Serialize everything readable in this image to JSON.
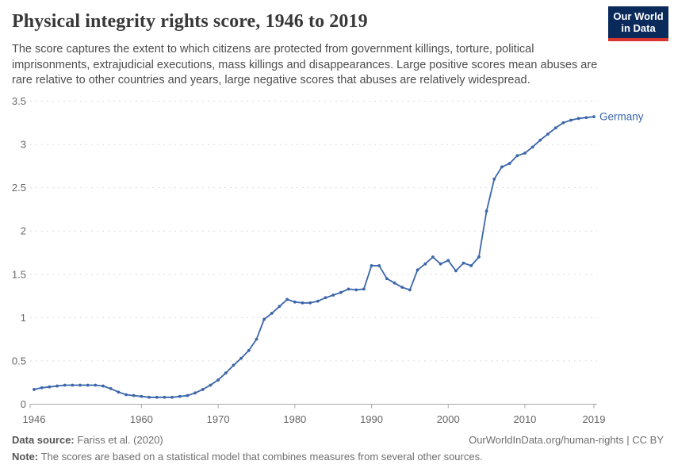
{
  "header": {
    "title": "Physical integrity rights score, 1946 to 2019",
    "subtitle": "The score captures the extent to which citizens are protected from government killings, torture, political imprisonments, extrajudicial executions, mass killings and disappearances. Large positive scores mean abuses are rare relative to other countries and years, large negative scores that abuses are relatively widespread.",
    "logo": {
      "line1": "Our World",
      "line2": "in Data"
    }
  },
  "chart_data": {
    "type": "line",
    "title": "Physical integrity rights score, 1946 to 2019",
    "xlabel": "",
    "ylabel": "",
    "xlim": [
      1946,
      2019
    ],
    "ylim": [
      0,
      3.5
    ],
    "grid": "horizontal-dashed",
    "legend_position": "end-of-line-label",
    "x_ticks": [
      1946,
      1960,
      1970,
      1980,
      1990,
      2000,
      2010,
      2019
    ],
    "y_ticks": [
      0,
      0.5,
      1,
      1.5,
      2,
      2.5,
      3,
      3.5
    ],
    "series": [
      {
        "name": "Germany",
        "color": "#3b66a9",
        "x": [
          1946,
          1947,
          1948,
          1949,
          1950,
          1951,
          1952,
          1953,
          1954,
          1955,
          1956,
          1957,
          1958,
          1959,
          1960,
          1961,
          1962,
          1963,
          1964,
          1965,
          1966,
          1967,
          1968,
          1969,
          1970,
          1971,
          1972,
          1973,
          1974,
          1975,
          1976,
          1977,
          1978,
          1979,
          1980,
          1981,
          1982,
          1983,
          1984,
          1985,
          1986,
          1987,
          1988,
          1989,
          1990,
          1991,
          1992,
          1993,
          1994,
          1995,
          1996,
          1997,
          1998,
          1999,
          2000,
          2001,
          2002,
          2003,
          2004,
          2005,
          2006,
          2007,
          2008,
          2009,
          2010,
          2011,
          2012,
          2013,
          2014,
          2015,
          2016,
          2017,
          2018,
          2019
        ],
        "values": [
          0.17,
          0.19,
          0.2,
          0.21,
          0.22,
          0.22,
          0.22,
          0.22,
          0.22,
          0.21,
          0.18,
          0.14,
          0.11,
          0.1,
          0.09,
          0.08,
          0.08,
          0.08,
          0.08,
          0.09,
          0.1,
          0.13,
          0.17,
          0.22,
          0.28,
          0.36,
          0.45,
          0.53,
          0.62,
          0.75,
          0.98,
          1.05,
          1.13,
          1.21,
          1.18,
          1.17,
          1.17,
          1.19,
          1.23,
          1.26,
          1.29,
          1.33,
          1.32,
          1.33,
          1.6,
          1.6,
          1.45,
          1.4,
          1.35,
          1.32,
          1.55,
          1.62,
          1.7,
          1.62,
          1.66,
          1.54,
          1.63,
          1.6,
          1.7,
          2.23,
          2.6,
          2.74,
          2.78,
          2.87,
          2.9,
          2.97,
          3.05,
          3.12,
          3.19,
          3.25,
          3.28,
          3.3,
          3.31,
          3.32
        ]
      }
    ]
  },
  "colors": {
    "line": "#3b66a9",
    "grid": "#dadada",
    "axis": "#a8a8a8",
    "tick_text": "#666666",
    "logo_bg": "#0a2a5c",
    "logo_stripe": "#d8352e"
  },
  "footer": {
    "source_label": "Data source:",
    "source_value": "Fariss et al. (2020)",
    "credit": "OurWorldInData.org/human-rights | CC BY",
    "note_label": "Note:",
    "note_value": "The scores are based on a statistical model that combines measures from several other sources."
  }
}
